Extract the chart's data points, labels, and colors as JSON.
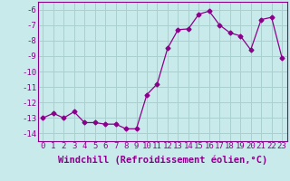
{
  "x": [
    0,
    1,
    2,
    3,
    4,
    5,
    6,
    7,
    8,
    9,
    10,
    11,
    12,
    13,
    14,
    15,
    16,
    17,
    18,
    19,
    20,
    21,
    22,
    23
  ],
  "y": [
    -13.0,
    -12.7,
    -13.0,
    -12.6,
    -13.3,
    -13.3,
    -13.4,
    -13.4,
    -13.7,
    -13.7,
    -11.5,
    -10.8,
    -8.5,
    -7.3,
    -7.25,
    -6.3,
    -6.1,
    -7.0,
    -7.5,
    -7.7,
    -8.6,
    -6.65,
    -6.5,
    -9.1
  ],
  "line_color": "#8b008b",
  "marker": "D",
  "marker_size": 2.5,
  "bg_color": "#c8eaea",
  "grid_color": "#aacfcf",
  "xlabel": "Windchill (Refroidissement éolien,°C)",
  "ylim": [
    -14.5,
    -5.5
  ],
  "xlim": [
    -0.5,
    23.5
  ],
  "yticks": [
    -14,
    -13,
    -12,
    -11,
    -10,
    -9,
    -8,
    -7,
    -6
  ],
  "xticks": [
    0,
    1,
    2,
    3,
    4,
    5,
    6,
    7,
    8,
    9,
    10,
    11,
    12,
    13,
    14,
    15,
    16,
    17,
    18,
    19,
    20,
    21,
    22,
    23
  ],
  "tick_label_fontsize": 6.5,
  "xlabel_fontsize": 7.5
}
